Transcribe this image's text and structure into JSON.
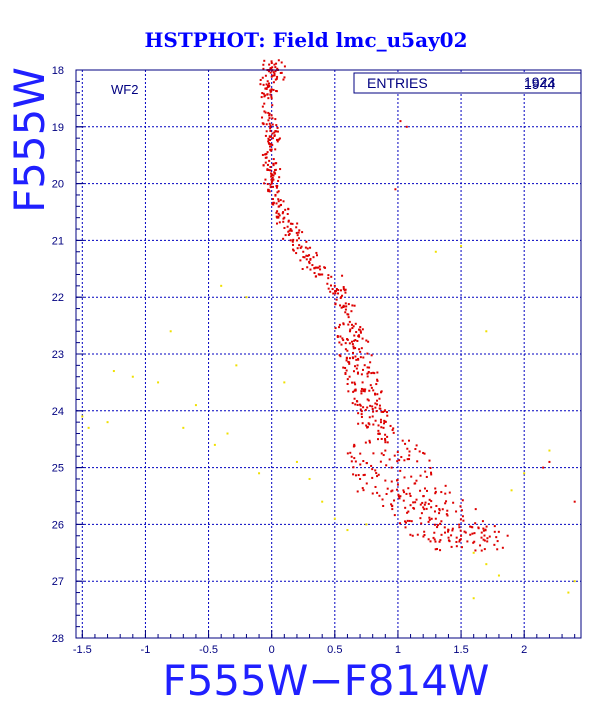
{
  "chart_data": {
    "type": "scatter",
    "title": "HSTPHOT: Field lmc_u5ay02",
    "xlabel": "F555W−F814W",
    "ylabel": "F555W",
    "xlim": [
      -1.55,
      2.45
    ],
    "ylim": [
      28,
      18
    ],
    "y_inverted": true,
    "grid": true,
    "x_ticks": [
      -1.5,
      -1,
      -0.5,
      0,
      0.5,
      1,
      1.5,
      2
    ],
    "x_tick_labels": [
      "-1.5",
      "-1",
      "-0.5",
      "0",
      "0.5",
      "1",
      "1.5",
      "2"
    ],
    "y_ticks": [
      18,
      19,
      20,
      21,
      22,
      23,
      24,
      25,
      26,
      27,
      28
    ],
    "y_tick_labels": [
      "18",
      "19",
      "20",
      "21",
      "22",
      "23",
      "24",
      "25",
      "26",
      "27",
      "28"
    ],
    "chip_label": "WF2",
    "stats_box": {
      "label": "ENTRIES",
      "values": [
        "1923",
        "1944"
      ]
    },
    "series": [
      {
        "color": "#dd0000",
        "description_points_approximate": true,
        "points": [
          [
            -0.02,
            18.0
          ],
          [
            0.01,
            18.1
          ],
          [
            0.05,
            18.0
          ],
          [
            -0.03,
            18.3
          ],
          [
            0.0,
            18.5
          ],
          [
            -0.02,
            18.8
          ],
          [
            -0.01,
            19.0
          ],
          [
            0.01,
            19.2
          ],
          [
            0.0,
            19.4
          ],
          [
            -0.02,
            19.6
          ],
          [
            0.02,
            19.8
          ],
          [
            0.0,
            20.0
          ],
          [
            0.03,
            20.2
          ],
          [
            0.06,
            20.4
          ],
          [
            0.1,
            20.6
          ],
          [
            0.15,
            20.8
          ],
          [
            0.2,
            21.0
          ],
          [
            0.25,
            21.2
          ],
          [
            0.3,
            21.4
          ],
          [
            0.4,
            21.6
          ],
          [
            0.5,
            21.8
          ],
          [
            0.55,
            22.0
          ],
          [
            0.6,
            22.3
          ],
          [
            0.62,
            22.6
          ],
          [
            0.65,
            22.9
          ],
          [
            0.68,
            23.2
          ],
          [
            0.72,
            23.5
          ],
          [
            0.76,
            23.8
          ],
          [
            0.8,
            24.1
          ],
          [
            0.85,
            24.4
          ],
          [
            0.9,
            24.7
          ],
          [
            0.95,
            25.0
          ],
          [
            1.0,
            25.3
          ],
          [
            1.1,
            25.5
          ],
          [
            1.2,
            25.7
          ],
          [
            1.3,
            25.9
          ],
          [
            1.4,
            26.1
          ],
          [
            1.5,
            26.2
          ],
          [
            1.55,
            26.3
          ],
          [
            1.07,
            19.0
          ],
          [
            1.02,
            18.9
          ],
          [
            0.98,
            20.1
          ],
          [
            2.15,
            25.0
          ],
          [
            2.2,
            24.9
          ],
          [
            2.4,
            25.6
          ]
        ]
      },
      {
        "color": "#f0e000",
        "points": [
          [
            -1.5,
            24.1
          ],
          [
            -1.45,
            24.3
          ],
          [
            -1.3,
            24.2
          ],
          [
            -1.25,
            23.3
          ],
          [
            -1.1,
            23.4
          ],
          [
            -0.9,
            23.5
          ],
          [
            -0.7,
            24.3
          ],
          [
            -0.6,
            23.9
          ],
          [
            -0.45,
            24.6
          ],
          [
            -0.35,
            24.4
          ],
          [
            -0.28,
            23.2
          ],
          [
            -0.2,
            22.0
          ],
          [
            -0.1,
            25.1
          ],
          [
            0.1,
            23.5
          ],
          [
            0.2,
            24.9
          ],
          [
            0.3,
            25.2
          ],
          [
            0.4,
            25.6
          ],
          [
            0.5,
            25.9
          ],
          [
            0.6,
            26.1
          ],
          [
            0.75,
            26.0
          ],
          [
            1.6,
            26.5
          ],
          [
            1.7,
            26.7
          ],
          [
            1.8,
            26.9
          ],
          [
            1.9,
            25.4
          ],
          [
            2.0,
            25.1
          ],
          [
            2.2,
            24.7
          ],
          [
            2.35,
            27.2
          ],
          [
            2.4,
            27.0
          ],
          [
            1.6,
            27.3
          ],
          [
            -0.4,
            21.8
          ],
          [
            -0.8,
            22.6
          ],
          [
            1.3,
            21.2
          ],
          [
            1.5,
            21.1
          ],
          [
            1.7,
            22.6
          ]
        ]
      }
    ]
  }
}
